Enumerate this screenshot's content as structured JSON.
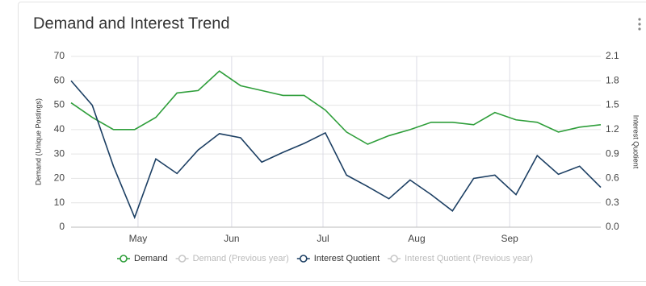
{
  "chart_data": {
    "type": "line",
    "title": "Demand and Interest Trend",
    "ylabel": "Demand (Unique Postings)",
    "y2label": "Interest Quotient",
    "categories": [
      null,
      null,
      null,
      null,
      null,
      null,
      null,
      null,
      null,
      null,
      null,
      null,
      null,
      null,
      null,
      null,
      null,
      null,
      null,
      null,
      null,
      null,
      null,
      null,
      null,
      null
    ],
    "xticks": [
      {
        "value": 3.16,
        "label": "May"
      },
      {
        "value": 7.58,
        "label": "Jun"
      },
      {
        "value": 11.89,
        "label": "Jul"
      },
      {
        "value": 16.31,
        "label": "Aug"
      },
      {
        "value": 20.7,
        "label": "Sep"
      }
    ],
    "ylim": [
      0,
      70
    ],
    "yticks": [
      0,
      10,
      20,
      30,
      40,
      50,
      60,
      70
    ],
    "y2lim": [
      0,
      2.1
    ],
    "y2ticks": [
      {
        "value": 0,
        "label": "0.0"
      },
      0.3,
      0.6,
      0.9,
      1.2,
      1.5,
      1.8,
      2.1
    ],
    "grid": true,
    "legend": "bottom",
    "series": [
      {
        "name": "Demand",
        "color": "#2e9e3a",
        "visible": true,
        "values": [
          51,
          45,
          40,
          40,
          45,
          55,
          56,
          64,
          58,
          56,
          54,
          54,
          48,
          39,
          34,
          37.5,
          40,
          43,
          43,
          42,
          47,
          44,
          43,
          39,
          41,
          42
        ]
      },
      {
        "name": "Demand (Previous year)",
        "color": "#c8c8c8",
        "visible": false,
        "values": [
          null,
          null,
          null,
          null,
          null,
          null,
          null,
          null,
          null,
          null,
          null,
          null,
          null,
          null,
          null,
          null,
          null,
          null,
          null,
          null,
          null,
          null,
          null,
          null,
          null,
          null
        ]
      },
      {
        "name": "Interest Quotient",
        "color": "#1c3f63",
        "axis": "y2",
        "visible": true,
        "values": [
          1.8,
          1.5,
          0.75,
          0.12,
          0.84,
          0.66,
          0.95,
          1.15,
          1.1,
          0.8,
          0.92,
          1.03,
          1.16,
          0.64,
          0.5,
          0.35,
          0.58,
          0.4,
          0.2,
          0.6,
          0.64,
          0.4,
          0.88,
          0.65,
          0.75,
          0.49
        ]
      },
      {
        "name": "Interest Quotient (Previous year)",
        "color": "#c8c8c8",
        "axis": "y2",
        "visible": false,
        "values": [
          null,
          null,
          null,
          null,
          null,
          null,
          null,
          null,
          null,
          null,
          null,
          null,
          null,
          null,
          null,
          null,
          null,
          null,
          null,
          null,
          null,
          null,
          null,
          null,
          null,
          null
        ]
      }
    ]
  }
}
